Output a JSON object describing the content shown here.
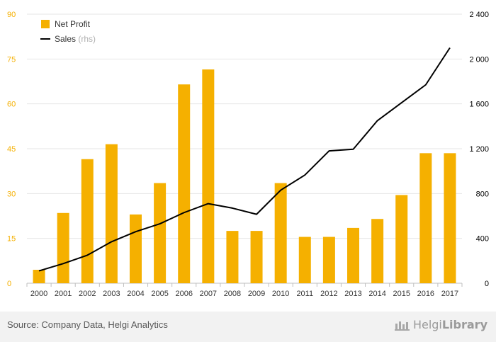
{
  "chart_data": {
    "type": "bar",
    "categories": [
      "2000",
      "2001",
      "2002",
      "2003",
      "2004",
      "2005",
      "2006",
      "2007",
      "2008",
      "2009",
      "2010",
      "2011",
      "2012",
      "2013",
      "2014",
      "2015",
      "2016",
      "2017"
    ],
    "series": [
      {
        "name": "Net Profit",
        "kind": "bar",
        "axis": "left",
        "color": "#f5b000",
        "values": [
          4.5,
          23.5,
          41.5,
          46.5,
          23,
          33.5,
          66.5,
          71.5,
          17.5,
          17.5,
          33.5,
          15.5,
          15.5,
          18.5,
          21.5,
          29.5,
          43.5,
          43.5
        ]
      },
      {
        "name": "Sales",
        "name_suffix": "(rhs)",
        "kind": "line",
        "axis": "right",
        "color": "#000000",
        "values": [
          110,
          175,
          250,
          370,
          460,
          530,
          630,
          710,
          670,
          615,
          830,
          965,
          1180,
          1195,
          1450,
          1610,
          1770,
          2100
        ]
      }
    ],
    "ylim_left": [
      0,
      90
    ],
    "yticks_left": [
      0,
      15,
      30,
      45,
      60,
      75,
      90
    ],
    "yticks_left_labels": [
      "0",
      "15",
      "30",
      "45",
      "60",
      "75",
      "90"
    ],
    "ylim_right": [
      0,
      2400
    ],
    "yticks_right": [
      0,
      400,
      800,
      1200,
      1600,
      2000,
      2400
    ],
    "yticks_right_labels": [
      "0",
      "400",
      "800",
      "1 200",
      "1 600",
      "2 000",
      "2 400"
    ],
    "grid": true,
    "legend_position": "top-left",
    "left_tick_color": "#f5b000",
    "right_tick_color": "#000000"
  },
  "footer": {
    "source": "Source: Company Data, Helgi Analytics",
    "brand_light": "Helgi",
    "brand_bold": "Library",
    "brand_icon": "helgi-logo-icon"
  }
}
